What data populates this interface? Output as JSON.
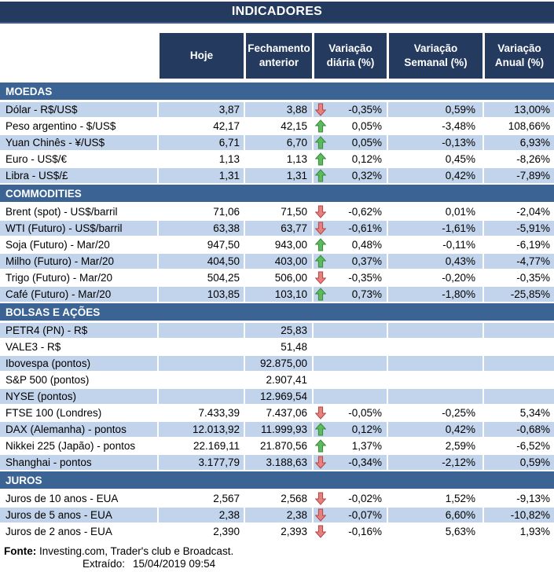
{
  "window": {
    "title": "INDICADORES"
  },
  "table": {
    "columns": [
      "Hoje",
      "Fechamento anterior",
      "Variação diária (%)",
      "Variação Semanal (%)",
      "Variação Anual (%)"
    ],
    "sections": [
      {
        "name": "MOEDAS",
        "rows": [
          {
            "label": "Dólar - R$/US$",
            "hoje": "3,87",
            "fechamento": "3,88",
            "arrow": "down",
            "diaria": "-0,35%",
            "semanal": "0,59%",
            "anual": "13,00%",
            "shaded": true
          },
          {
            "label": "Peso argentino - $/US$",
            "hoje": "42,17",
            "fechamento": "42,15",
            "arrow": "up",
            "diaria": "0,05%",
            "semanal": "-3,48%",
            "anual": "108,66%",
            "shaded": false
          },
          {
            "label": "Yuan Chinês - ¥/US$",
            "hoje": "6,71",
            "fechamento": "6,70",
            "arrow": "up",
            "diaria": "0,05%",
            "semanal": "-0,13%",
            "anual": "6,93%",
            "shaded": true
          },
          {
            "label": "Euro - US$/€",
            "hoje": "1,13",
            "fechamento": "1,13",
            "arrow": "up",
            "diaria": "0,12%",
            "semanal": "0,45%",
            "anual": "-8,26%",
            "shaded": false
          },
          {
            "label": "Libra - US$/£",
            "hoje": "1,31",
            "fechamento": "1,31",
            "arrow": "up",
            "diaria": "0,32%",
            "semanal": "0,42%",
            "anual": "-7,89%",
            "shaded": true
          }
        ]
      },
      {
        "name": "COMMODITIES",
        "rows": [
          {
            "label": "Brent (spot) - US$/barril",
            "hoje": "71,06",
            "fechamento": "71,50",
            "arrow": "down",
            "diaria": "-0,62%",
            "semanal": "0,01%",
            "anual": "-2,04%",
            "shaded": false
          },
          {
            "label": "WTI (Futuro) - US$/barril",
            "hoje": "63,38",
            "fechamento": "63,77",
            "arrow": "down",
            "diaria": "-0,61%",
            "semanal": "-1,61%",
            "anual": "-5,91%",
            "shaded": true
          },
          {
            "label": "Soja (Futuro) - Mar/20",
            "hoje": "947,50",
            "fechamento": "943,00",
            "arrow": "up",
            "diaria": "0,48%",
            "semanal": "-0,11%",
            "anual": "-6,19%",
            "shaded": false
          },
          {
            "label": "Milho (Futuro) - Mar/20",
            "hoje": "404,50",
            "fechamento": "403,00",
            "arrow": "up",
            "diaria": "0,37%",
            "semanal": "0,43%",
            "anual": "-4,77%",
            "shaded": true
          },
          {
            "label": "Trigo (Futuro) - Mar/20",
            "hoje": "504,25",
            "fechamento": "506,00",
            "arrow": "down",
            "diaria": "-0,35%",
            "semanal": "-0,20%",
            "anual": "-0,35%",
            "shaded": false
          },
          {
            "label": "Café (Futuro) - Mar/20",
            "hoje": "103,85",
            "fechamento": "103,10",
            "arrow": "up",
            "diaria": "0,73%",
            "semanal": "-1,80%",
            "anual": "-25,85%",
            "shaded": true
          }
        ]
      },
      {
        "name": "BOLSAS E AÇÕES",
        "rows": [
          {
            "label": "PETR4 (PN) - R$",
            "hoje": "",
            "fechamento": "25,83",
            "arrow": "",
            "diaria": "",
            "semanal": "",
            "anual": "",
            "shaded": true
          },
          {
            "label": "VALE3 - R$",
            "hoje": "",
            "fechamento": "51,48",
            "arrow": "",
            "diaria": "",
            "semanal": "",
            "anual": "",
            "shaded": false
          },
          {
            "label": "Ibovespa (pontos)",
            "hoje": "",
            "fechamento": "92.875,00",
            "arrow": "",
            "diaria": "",
            "semanal": "",
            "anual": "",
            "shaded": true
          },
          {
            "label": "S&P 500 (pontos)",
            "hoje": "",
            "fechamento": "2.907,41",
            "arrow": "",
            "diaria": "",
            "semanal": "",
            "anual": "",
            "shaded": false
          },
          {
            "label": "NYSE (pontos)",
            "hoje": "",
            "fechamento": "12.969,54",
            "arrow": "",
            "diaria": "",
            "semanal": "",
            "anual": "",
            "shaded": true
          },
          {
            "label": "FTSE 100 (Londres)",
            "hoje": "7.433,39",
            "fechamento": "7.437,06",
            "arrow": "down",
            "diaria": "-0,05%",
            "semanal": "-0,25%",
            "anual": "5,34%",
            "shaded": false
          },
          {
            "label": "DAX (Alemanha) - pontos",
            "hoje": "12.013,92",
            "fechamento": "11.999,93",
            "arrow": "up",
            "diaria": "0,12%",
            "semanal": "0,42%",
            "anual": "-0,68%",
            "shaded": true
          },
          {
            "label": "Nikkei 225 (Japão) - pontos",
            "hoje": "22.169,11",
            "fechamento": "21.870,56",
            "arrow": "up",
            "diaria": "1,37%",
            "semanal": "2,59%",
            "anual": "-6,52%",
            "shaded": false
          },
          {
            "label": "Shanghai - pontos",
            "hoje": "3.177,79",
            "fechamento": "3.188,63",
            "arrow": "down",
            "diaria": "-0,34%",
            "semanal": "-2,12%",
            "anual": "0,59%",
            "shaded": true
          }
        ]
      },
      {
        "name": "JUROS",
        "rows": [
          {
            "label": "Juros de 10 anos - EUA",
            "hoje": "2,567",
            "fechamento": "2,568",
            "arrow": "down",
            "diaria": "-0,02%",
            "semanal": "1,52%",
            "anual": "-9,13%",
            "shaded": false
          },
          {
            "label": "Juros de 5 anos - EUA",
            "hoje": "2,38",
            "fechamento": "2,38",
            "arrow": "down",
            "diaria": "-0,07%",
            "semanal": "6,60%",
            "anual": "-10,82%",
            "shaded": true
          },
          {
            "label": "Juros de 2 anos - EUA",
            "hoje": "2,390",
            "fechamento": "2,393",
            "arrow": "down",
            "diaria": "-0,16%",
            "semanal": "5,63%",
            "anual": "1,93%",
            "shaded": false
          }
        ]
      }
    ]
  },
  "footer": {
    "fonte_label": "Fonte:",
    "fonte_text": " Investing.com, Trader's club e Broadcast.",
    "extraido_label": "Extraído:",
    "extraido_value": "15/04/2019 09:54"
  },
  "colors": {
    "title_bar": "#243A5E",
    "header_cell": "#243A5E",
    "section_bar": "#3B6394",
    "row_light": "#C2D4EB",
    "row_white": "#FFFFFF",
    "arrow_up_fill": "#5DBB5D",
    "arrow_up_stroke": "#3A8A3E",
    "arrow_down_fill": "#E98080",
    "arrow_down_stroke": "#B04744",
    "text": "#000000"
  }
}
